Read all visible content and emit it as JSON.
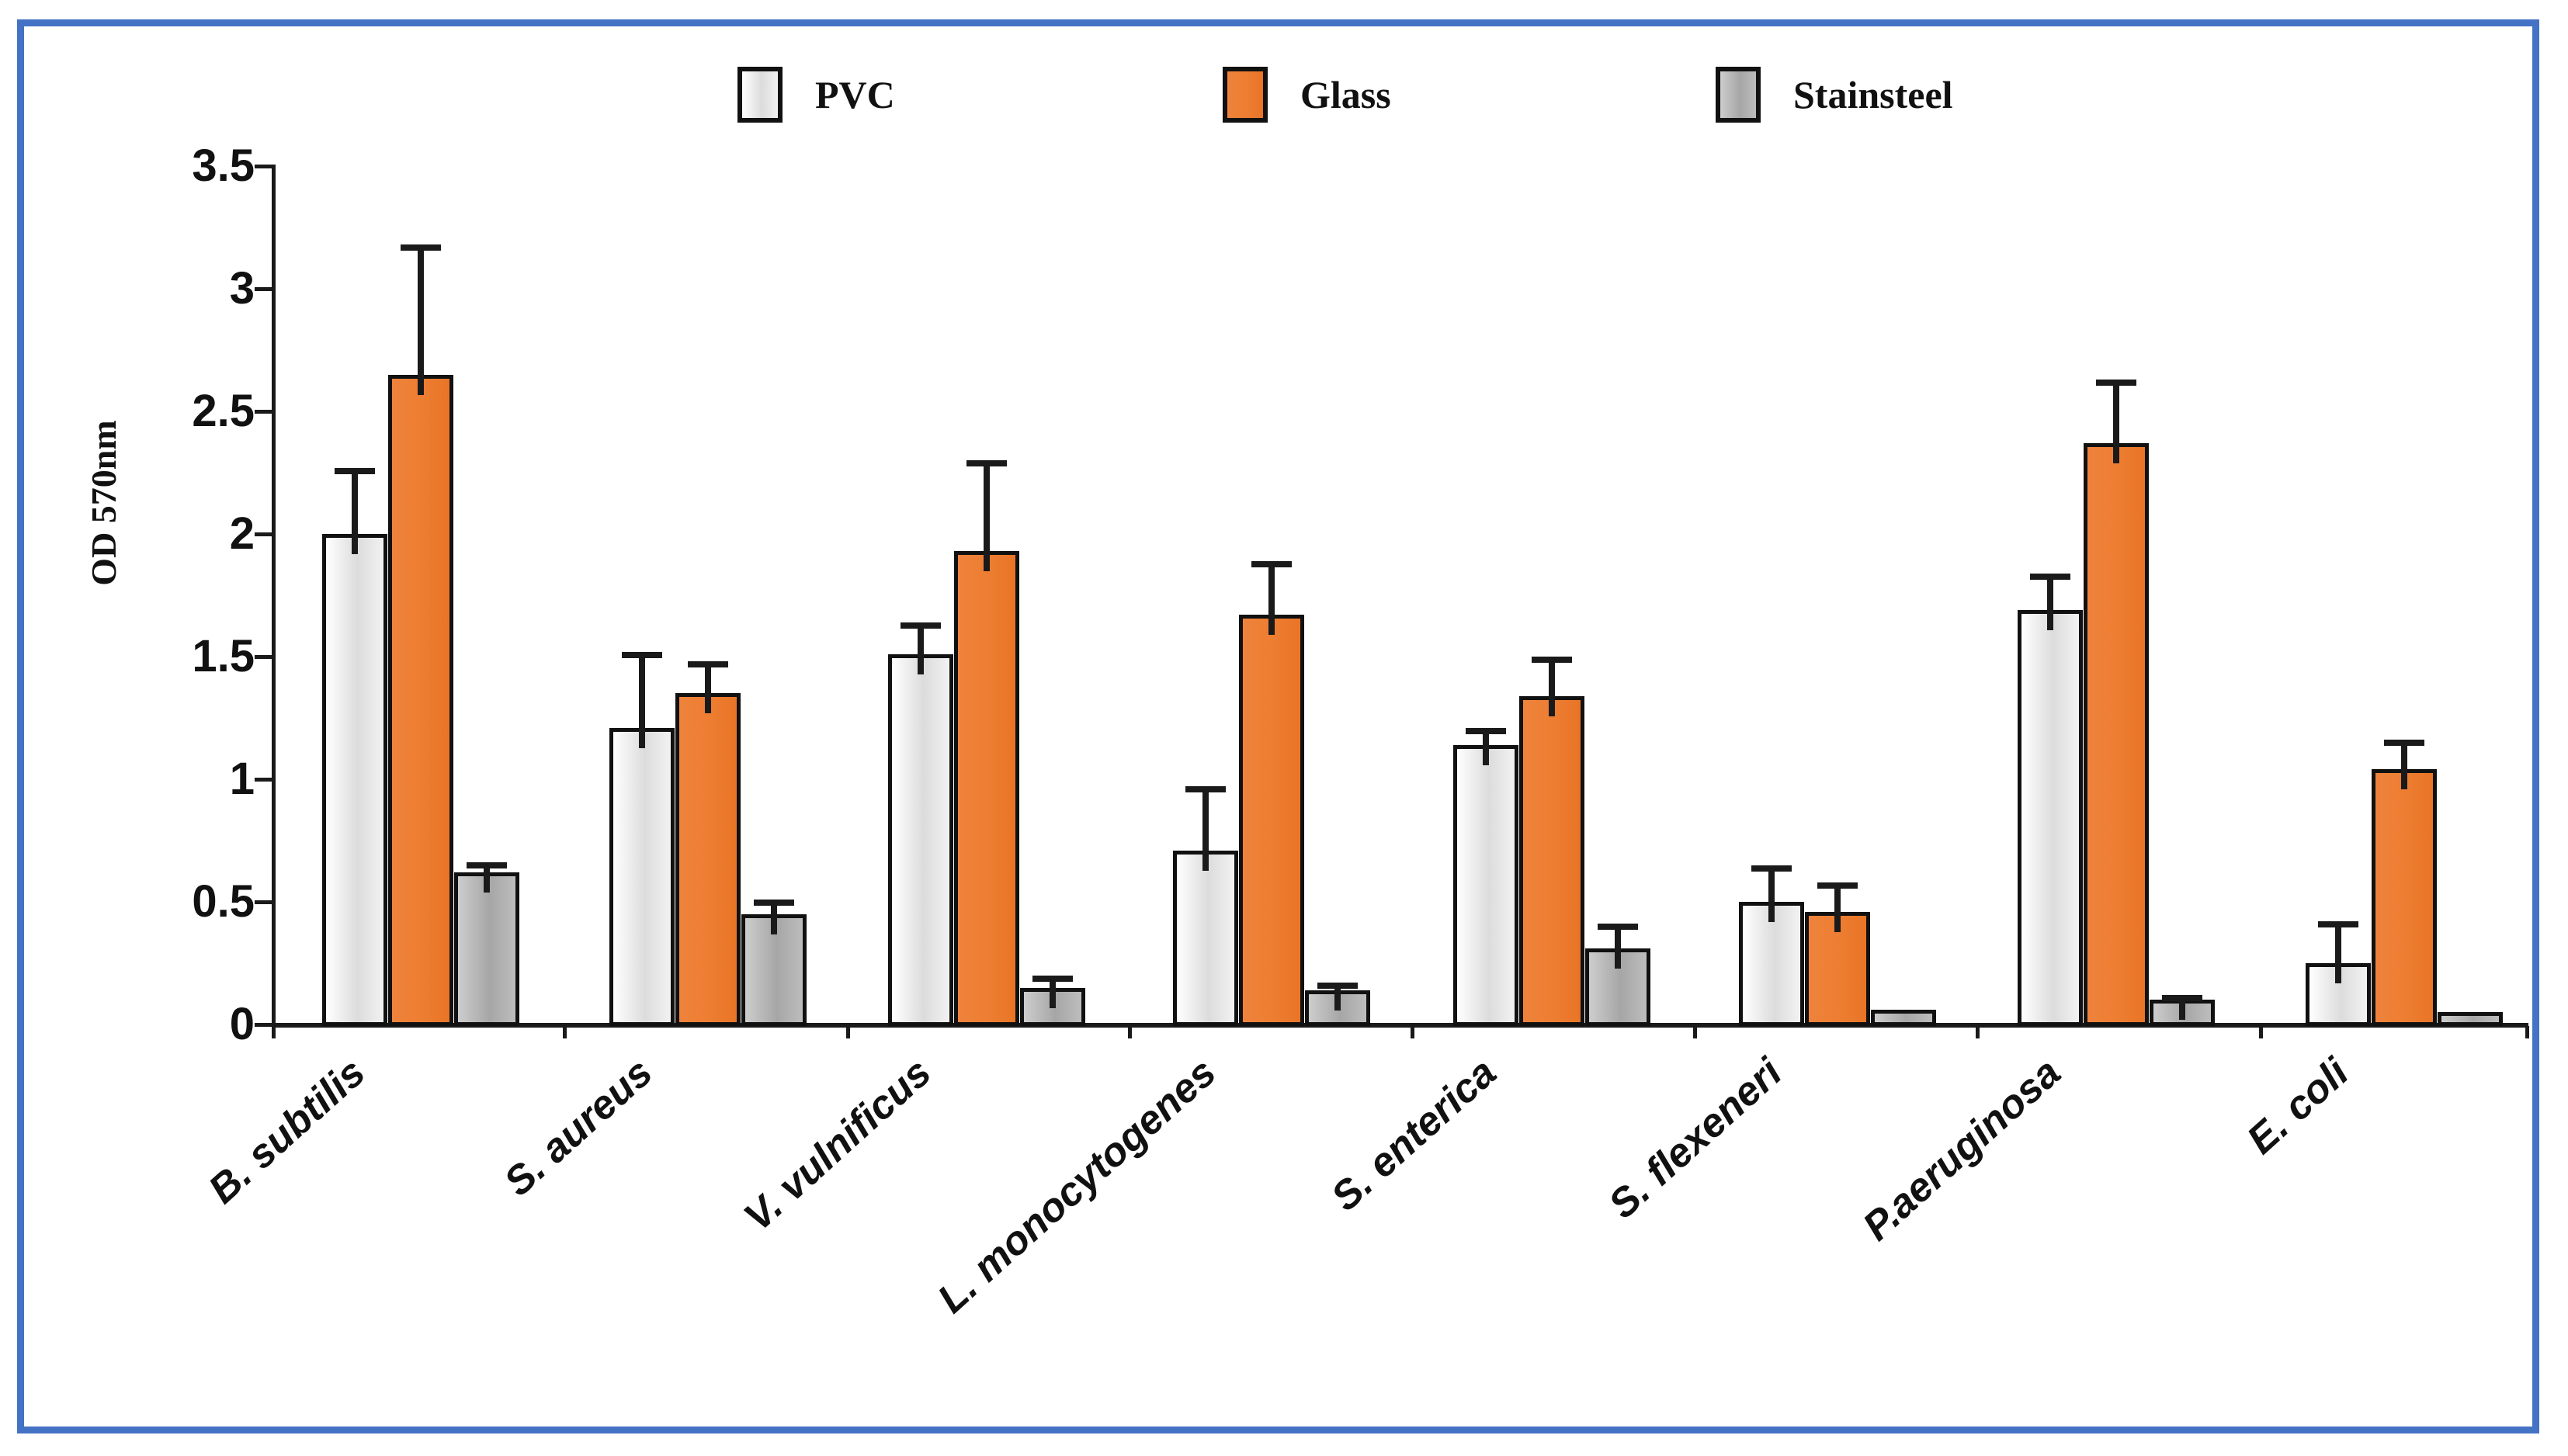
{
  "figure": {
    "frame_border_color": "#4472C4",
    "background": "#ffffff",
    "axis_color": "#1a1a1a"
  },
  "chart_data": {
    "type": "bar",
    "title": "",
    "xlabel": "",
    "ylabel": "OD 570nm",
    "ylim": [
      0,
      3.5
    ],
    "grid": false,
    "legend_position": "top",
    "yticks": [
      {
        "label": "3.5",
        "value": 3.5
      },
      {
        "label": "3",
        "value": 3
      },
      {
        "label": "2.5",
        "value": 2.5
      },
      {
        "label": "2",
        "value": 2
      },
      {
        "label": "1.5",
        "value": 1.5
      },
      {
        "label": "1",
        "value": 1
      },
      {
        "label": "0.5",
        "value": 0.5
      },
      {
        "label": "0",
        "value": 0
      }
    ],
    "categories": [
      "B. subtilis",
      "S. aureus",
      "V. vulnificus",
      "L. monocytogenes",
      "S. enterica",
      "S. flexeneri",
      "P.aeruginosa",
      "E. coli"
    ],
    "series": [
      {
        "name": "PVC",
        "color": "#e8e8e8",
        "fill_stops": [
          "#ffffff",
          "#dcdcdc",
          "#f2f2f2"
        ],
        "values": [
          2.0,
          1.21,
          1.51,
          0.71,
          1.14,
          0.5,
          1.69,
          0.25
        ],
        "errors": [
          0.27,
          0.31,
          0.13,
          0.26,
          0.07,
          0.15,
          0.15,
          0.17
        ]
      },
      {
        "name": "Glass",
        "color": "#ED7D31",
        "fill_stops": [
          "#ef833c",
          "#ed7d31",
          "#e97426"
        ],
        "values": [
          2.65,
          1.35,
          1.93,
          1.67,
          1.34,
          0.46,
          2.37,
          1.04
        ],
        "errors": [
          0.53,
          0.13,
          0.37,
          0.22,
          0.16,
          0.12,
          0.26,
          0.12
        ]
      },
      {
        "name": "Stainsteel",
        "color": "#A6A6A6",
        "fill_stops": [
          "#cdcdcd",
          "#a6a6a6",
          "#bdbdbd"
        ],
        "values": [
          0.62,
          0.45,
          0.15,
          0.14,
          0.31,
          0.06,
          0.1,
          0.05
        ],
        "errors": [
          0.04,
          0.06,
          0.05,
          0.03,
          0.1,
          0,
          0.02,
          0
        ]
      }
    ]
  }
}
